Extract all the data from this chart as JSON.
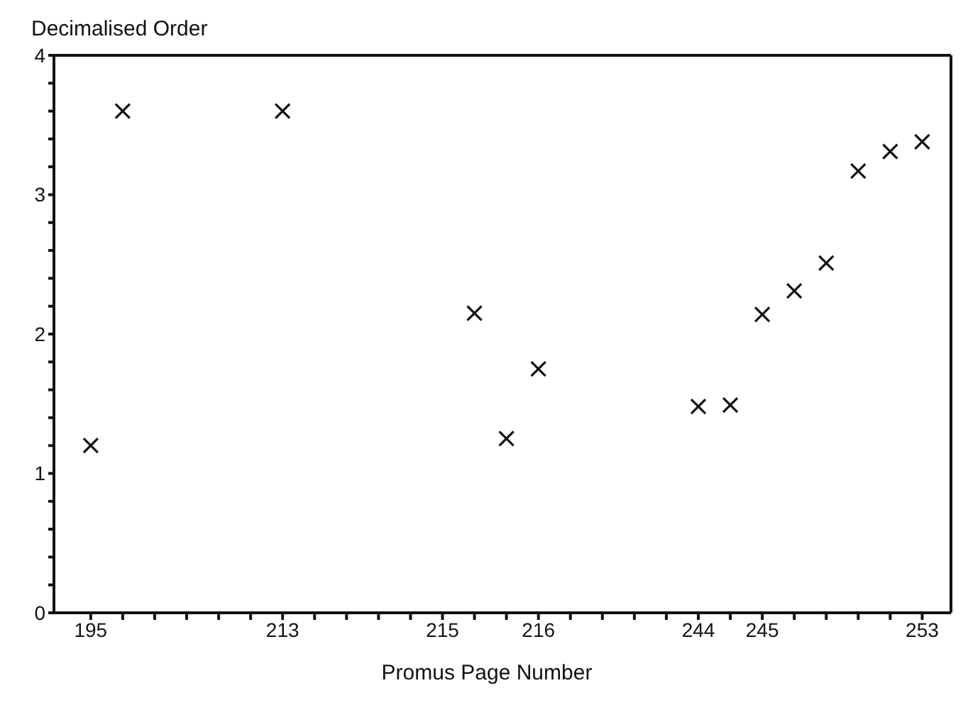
{
  "chart_data": {
    "type": "scatter",
    "xlabel": "Promus Page Number",
    "ylabel": "Decimalised Order",
    "categories": [
      "195",
      null,
      null,
      null,
      null,
      null,
      "213",
      null,
      null,
      null,
      null,
      "215",
      null,
      null,
      "216",
      null,
      null,
      null,
      null,
      "244",
      null,
      "245",
      null,
      null,
      null,
      null,
      "253"
    ],
    "values": [
      1.2,
      3.6,
      null,
      null,
      null,
      null,
      3.6,
      null,
      null,
      null,
      null,
      null,
      2.15,
      1.25,
      1.75,
      null,
      null,
      null,
      null,
      1.48,
      1.49,
      2.14,
      2.31,
      2.51,
      3.17,
      3.31,
      3.38
    ],
    "color": "#111111",
    "marker": "cross",
    "grid": false,
    "legend": false,
    "ylim": [
      0,
      4
    ],
    "yticks": [
      0,
      {
        "value": 0.2,
        "label": null
      },
      {
        "value": 0.4,
        "label": null
      },
      {
        "value": 0.6,
        "label": null
      },
      {
        "value": 0.8,
        "label": null
      },
      1,
      {
        "value": 1.2,
        "label": null
      },
      {
        "value": 1.4,
        "label": null
      },
      {
        "value": 1.6,
        "label": null
      },
      {
        "value": 1.8,
        "label": null
      },
      2,
      {
        "value": 2.2,
        "label": null
      },
      {
        "value": 2.4,
        "label": null
      },
      {
        "value": 2.6,
        "label": null
      },
      {
        "value": 2.8,
        "label": null
      },
      3,
      {
        "value": 3.2,
        "label": null
      },
      {
        "value": 3.4,
        "label": null
      },
      {
        "value": 3.6,
        "label": null
      },
      {
        "value": 3.8,
        "label": null
      },
      4
    ]
  }
}
